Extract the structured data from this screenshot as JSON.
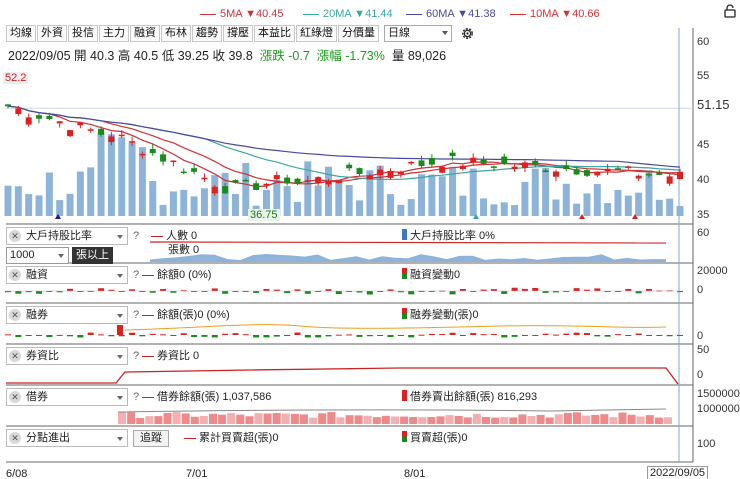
{
  "ma_legend": [
    {
      "label": "5MA ▼40.45",
      "color": "#c8323c"
    },
    {
      "label": "20MA ▼41.44",
      "color": "#3ca5a0"
    },
    {
      "label": "60MA ▼41.38",
      "color": "#4a4aa0"
    },
    {
      "label": "10MA ▼40.66",
      "color": "#d23232"
    }
  ],
  "toolbar": {
    "tabs": [
      "均線",
      "外資",
      "投信",
      "主力",
      "融資",
      "布林",
      "趨勢",
      "撐壓",
      "本益比",
      "紅綠燈",
      "分價量"
    ],
    "period_select": "日線",
    "settings_icon": "gear-icon"
  },
  "quote": {
    "date": "2022/09/05",
    "open_label": "開",
    "open": "40.3",
    "high_label": "高",
    "high": "40.5",
    "low_label": "低",
    "low": "39.25",
    "close_label": "收",
    "close": "39.8",
    "change_label": "漲跌",
    "change": "-0.7",
    "pct_label": "漲幅",
    "pct": "-1.73%",
    "vol_label": "量",
    "vol": "89,026"
  },
  "price_chart": {
    "yticks": [
      "60",
      "55",
      "50",
      "45",
      "40",
      "35"
    ],
    "current_price_label": "51.15",
    "high_mark": "52.2",
    "low_mark": "36.75"
  },
  "panels": {
    "p1": {
      "select": "大戶持股比率",
      "threshold": "1000",
      "unit_btn": "張以上",
      "t1": "人數 0",
      "t2": "張數 0",
      "t3": "大戶持股比率 0%",
      "ytick": "60",
      "t1_color": "#cc2222",
      "t3_color": "#3a78c2"
    },
    "p2": {
      "select": "融資",
      "t1": "餘額0 (0%)",
      "t2": "融資變動0",
      "yticks": [
        "20000",
        "0"
      ]
    },
    "p3": {
      "select": "融券",
      "t1": "餘額(張)0 (0%)",
      "t2": "融券變動(張)0",
      "ytick": "0"
    },
    "p4": {
      "select": "券資比",
      "t1": "券資比 0",
      "yticks": [
        "50",
        "0"
      ]
    },
    "p5": {
      "select": "借券",
      "t1": "借券餘額(張) 1,037,586",
      "t2": "借券賣出餘額(張) 816,293",
      "yticks": [
        "1500000",
        "1000000"
      ]
    },
    "p6": {
      "select": "分點進出",
      "btn": "追蹤",
      "t1": "累計買賣超(張)0",
      "t2": "買賣超(張)0",
      "ytick": "100"
    }
  },
  "x_axis": {
    "labels": [
      "6/08",
      "7/01",
      "8/01"
    ],
    "cursor_label": "2022/09/05"
  },
  "colors": {
    "up": "#e02020",
    "down": "#1a8a1a",
    "volume": "#8db4d8",
    "accent": "#3a78c2"
  },
  "chart_data": {
    "type": "candlestick",
    "x": [
      "6/08",
      "7/01",
      "8/01",
      "2022/09/05"
    ],
    "ylim": [
      33.5,
      62
    ],
    "yticks": [
      60,
      55,
      50,
      45,
      40,
      35
    ],
    "period_high": 52.2,
    "period_low": 36.75,
    "last_close": 39.8
  }
}
